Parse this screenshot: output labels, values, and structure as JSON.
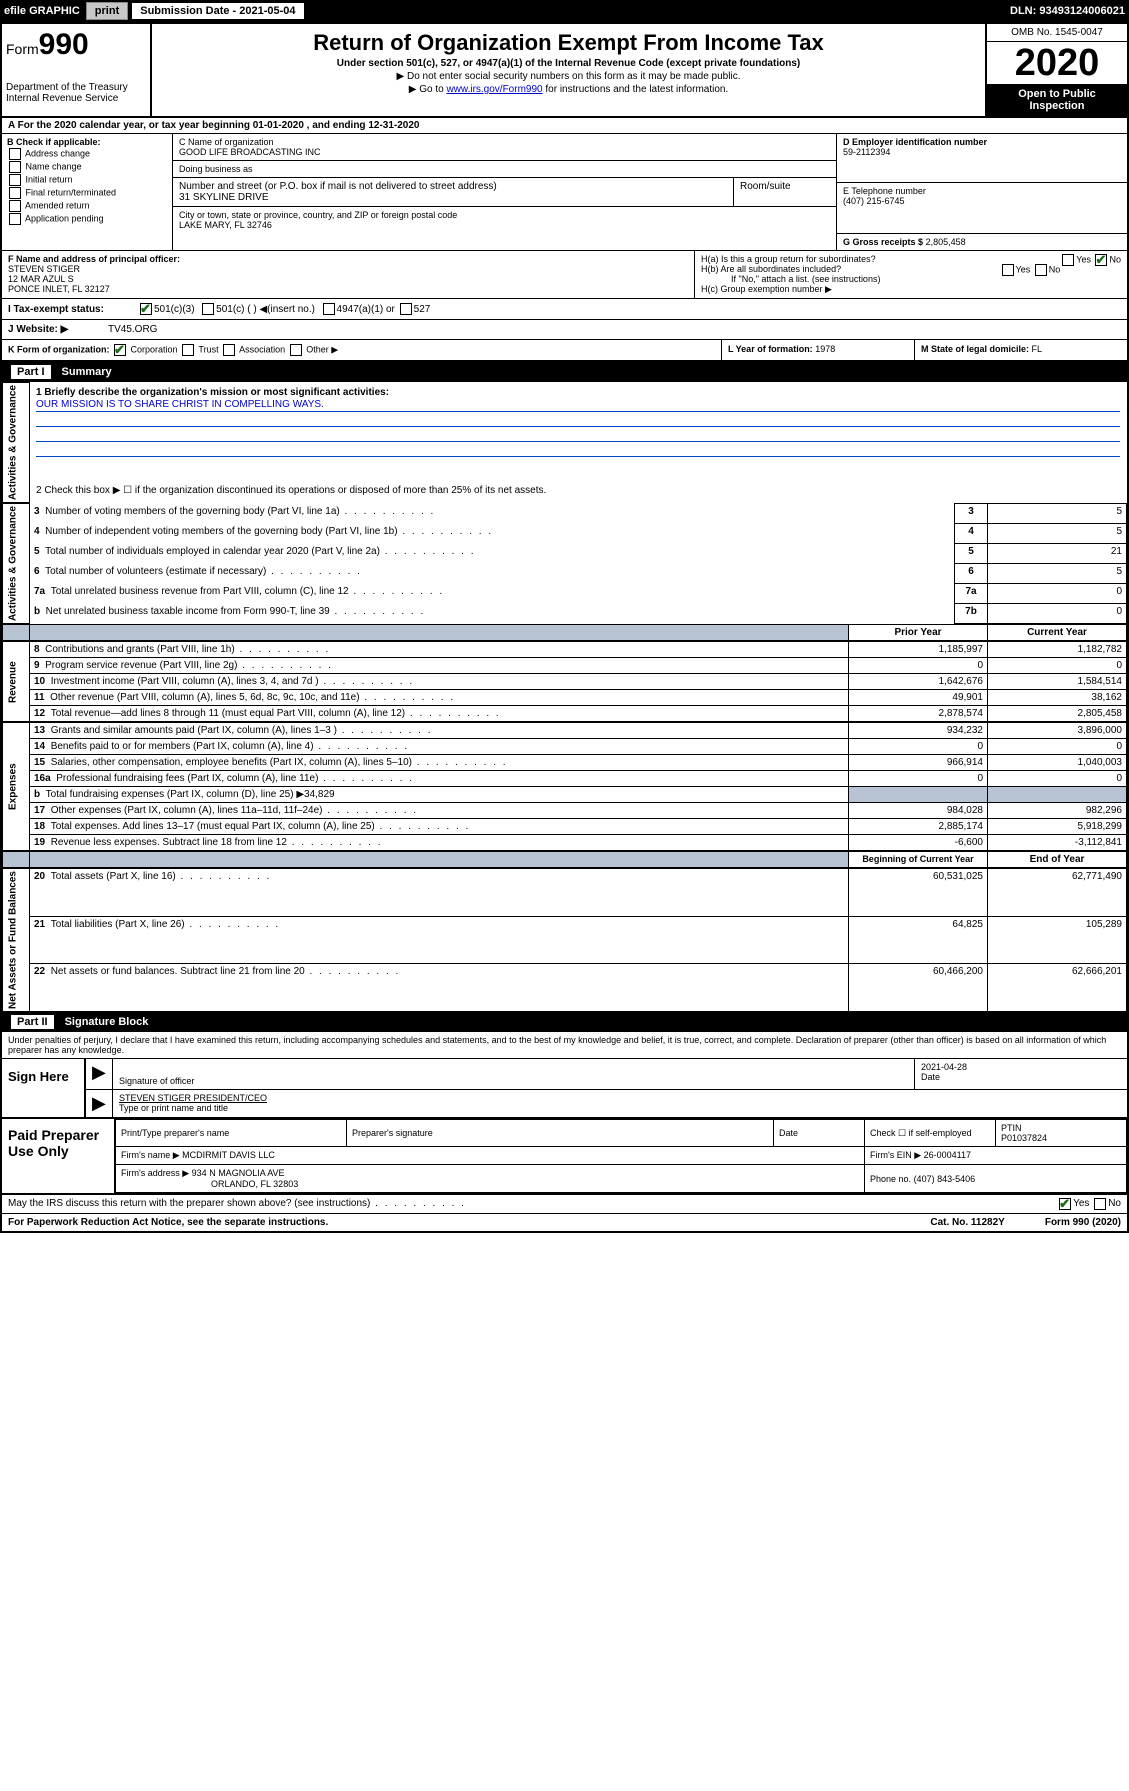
{
  "topbar": {
    "efile": "efile GRAPHIC",
    "print": "print",
    "sub_label": "Submission Date - 2021-05-04",
    "dln": "DLN: 93493124006021"
  },
  "header": {
    "form_prefix": "Form",
    "form_num": "990",
    "dept1": "Department of the Treasury",
    "dept2": "Internal Revenue Service",
    "title": "Return of Organization Exempt From Income Tax",
    "sub1": "Under section 501(c), 527, or 4947(a)(1) of the Internal Revenue Code (except private foundations)",
    "sub2": "▶ Do not enter social security numbers on this form as it may be made public.",
    "sub3_pre": "▶ Go to ",
    "sub3_link": "www.irs.gov/Form990",
    "sub3_post": " for instructions and the latest information.",
    "omb": "OMB No. 1545-0047",
    "year": "2020",
    "open": "Open to Public Inspection"
  },
  "rowA": "A For the 2020 calendar year, or tax year beginning 01-01-2020    , and ending 12-31-2020",
  "colB": {
    "label": "B Check if applicable:",
    "addr_change": "Address change",
    "name_change": "Name change",
    "initial": "Initial return",
    "final": "Final return/terminated",
    "amended": "Amended return",
    "app_pending": "Application pending"
  },
  "colC": {
    "name_label": "C Name of organization",
    "name": "GOOD LIFE BROADCASTING INC",
    "dba_label": "Doing business as",
    "dba": "",
    "addr_label": "Number and street (or P.O. box if mail is not delivered to street address)",
    "addr": "31 SKYLINE DRIVE",
    "room_label": "Room/suite",
    "city_label": "City or town, state or province, country, and ZIP or foreign postal code",
    "city": "LAKE MARY, FL  32746"
  },
  "colD": {
    "ein_label": "D Employer identification number",
    "ein": "59-2112394",
    "phone_label": "E Telephone number",
    "phone": "(407) 215-6745",
    "gross_label": "G Gross receipts $",
    "gross": "2,805,458"
  },
  "rowF": {
    "label": "F  Name and address of principal officer:",
    "name": "STEVEN STIGER",
    "addr1": "12 MAR AZUL S",
    "addr2": "PONCE INLET, FL  32127"
  },
  "rowH": {
    "ha": "H(a)  Is this a group return for subordinates?",
    "hb": "H(b)  Are all subordinates included?",
    "hb_note": "If \"No,\" attach a list. (see instructions)",
    "hc": "H(c)  Group exemption number ▶"
  },
  "rowI": {
    "label": "I   Tax-exempt status:",
    "opt1": "501(c)(3)",
    "opt2": "501(c) (   ) ◀(insert no.)",
    "opt3": "4947(a)(1) or",
    "opt4": "527"
  },
  "rowJ": {
    "label": "J   Website: ▶",
    "val": "TV45.ORG"
  },
  "rowK": {
    "label": "K Form of organization:",
    "corp": "Corporation",
    "trust": "Trust",
    "assoc": "Association",
    "other": "Other ▶",
    "l_label": "L Year of formation:",
    "l_val": "1978",
    "m_label": "M State of legal domicile:",
    "m_val": "FL"
  },
  "part1": {
    "header_pt": "Part I",
    "header_title": "Summary",
    "line1_label": "1  Briefly describe the organization's mission or most significant activities:",
    "line1_val": "OUR MISSION IS TO SHARE CHRIST IN COMPELLING WAYS.",
    "line2": "2   Check this box ▶ ☐ if the organization discontinued its operations or disposed of more than 25% of its net assets.",
    "sides": {
      "gov": "Activities & Governance",
      "rev": "Revenue",
      "exp": "Expenses",
      "net": "Net Assets or Fund Balances"
    },
    "cols": {
      "prior": "Prior Year",
      "current": "Current Year",
      "begin": "Beginning of Current Year",
      "end": "End of Year"
    },
    "rows": [
      {
        "n": "3",
        "label": "Number of voting members of the governing body (Part VI, line 1a)",
        "box": "3",
        "v": "5"
      },
      {
        "n": "4",
        "label": "Number of independent voting members of the governing body (Part VI, line 1b)",
        "box": "4",
        "v": "5"
      },
      {
        "n": "5",
        "label": "Total number of individuals employed in calendar year 2020 (Part V, line 2a)",
        "box": "5",
        "v": "21"
      },
      {
        "n": "6",
        "label": "Total number of volunteers (estimate if necessary)",
        "box": "6",
        "v": "5"
      },
      {
        "n": "7a",
        "label": "Total unrelated business revenue from Part VIII, column (C), line 12",
        "box": "7a",
        "v": "0"
      },
      {
        "n": "b",
        "label": "Net unrelated business taxable income from Form 990-T, line 39",
        "box": "7b",
        "v": "0"
      }
    ],
    "rev_rows": [
      {
        "n": "8",
        "label": "Contributions and grants (Part VIII, line 1h)",
        "p": "1,185,997",
        "c": "1,182,782"
      },
      {
        "n": "9",
        "label": "Program service revenue (Part VIII, line 2g)",
        "p": "0",
        "c": "0"
      },
      {
        "n": "10",
        "label": "Investment income (Part VIII, column (A), lines 3, 4, and 7d )",
        "p": "1,642,676",
        "c": "1,584,514"
      },
      {
        "n": "11",
        "label": "Other revenue (Part VIII, column (A), lines 5, 6d, 8c, 9c, 10c, and 11e)",
        "p": "49,901",
        "c": "38,162"
      },
      {
        "n": "12",
        "label": "Total revenue—add lines 8 through 11 (must equal Part VIII, column (A), line 12)",
        "p": "2,878,574",
        "c": "2,805,458"
      }
    ],
    "exp_rows": [
      {
        "n": "13",
        "label": "Grants and similar amounts paid (Part IX, column (A), lines 1–3 )",
        "p": "934,232",
        "c": "3,896,000"
      },
      {
        "n": "14",
        "label": "Benefits paid to or for members (Part IX, column (A), line 4)",
        "p": "0",
        "c": "0"
      },
      {
        "n": "15",
        "label": "Salaries, other compensation, employee benefits (Part IX, column (A), lines 5–10)",
        "p": "966,914",
        "c": "1,040,003"
      },
      {
        "n": "16a",
        "label": "Professional fundraising fees (Part IX, column (A), line 11e)",
        "p": "0",
        "c": "0"
      },
      {
        "n": "b",
        "label": "Total fundraising expenses (Part IX, column (D), line 25) ▶34,829",
        "p": "",
        "c": "",
        "shaded": true
      },
      {
        "n": "17",
        "label": "Other expenses (Part IX, column (A), lines 11a–11d, 11f–24e)",
        "p": "984,028",
        "c": "982,296"
      },
      {
        "n": "18",
        "label": "Total expenses. Add lines 13–17 (must equal Part IX, column (A), line 25)",
        "p": "2,885,174",
        "c": "5,918,299"
      },
      {
        "n": "19",
        "label": "Revenue less expenses. Subtract line 18 from line 12",
        "p": "-6,600",
        "c": "-3,112,841"
      }
    ],
    "net_rows": [
      {
        "n": "20",
        "label": "Total assets (Part X, line 16)",
        "p": "60,531,025",
        "c": "62,771,490"
      },
      {
        "n": "21",
        "label": "Total liabilities (Part X, line 26)",
        "p": "64,825",
        "c": "105,289"
      },
      {
        "n": "22",
        "label": "Net assets or fund balances. Subtract line 21 from line 20",
        "p": "60,466,200",
        "c": "62,666,201"
      }
    ]
  },
  "part2": {
    "header_pt": "Part II",
    "header_title": "Signature Block",
    "perjury": "Under penalties of perjury, I declare that I have examined this return, including accompanying schedules and statements, and to the best of my knowledge and belief, it is true, correct, and complete. Declaration of preparer (other than officer) is based on all information of which preparer has any knowledge.",
    "sign_here": "Sign Here",
    "sig_officer": "Signature of officer",
    "sig_date": "2021-04-28",
    "date_label": "Date",
    "officer_name": "STEVEN STIGER  PRESIDENT/CEO",
    "type_name": "Type or print name and title",
    "paid_label": "Paid Preparer Use Only",
    "prep_name_label": "Print/Type preparer's name",
    "prep_sig_label": "Preparer's signature",
    "check_label": "Check ☐ if self-employed",
    "ptin_label": "PTIN",
    "ptin": "P01037824",
    "firm_name_label": "Firm's name     ▶",
    "firm_name": "MCDIRMIT DAVIS LLC",
    "firm_ein_label": "Firm's EIN ▶",
    "firm_ein": "26-0004117",
    "firm_addr_label": "Firm's address ▶",
    "firm_addr1": "934 N MAGNOLIA AVE",
    "firm_addr2": "ORLANDO, FL  32803",
    "phone_label": "Phone no.",
    "phone": "(407) 843-5406",
    "discuss": "May the IRS discuss this return with the preparer shown above? (see instructions)",
    "yes": "Yes",
    "no": "No"
  },
  "footer": {
    "pra": "For Paperwork Reduction Act Notice, see the separate instructions.",
    "cat": "Cat. No. 11282Y",
    "form": "Form 990 (2020)"
  }
}
